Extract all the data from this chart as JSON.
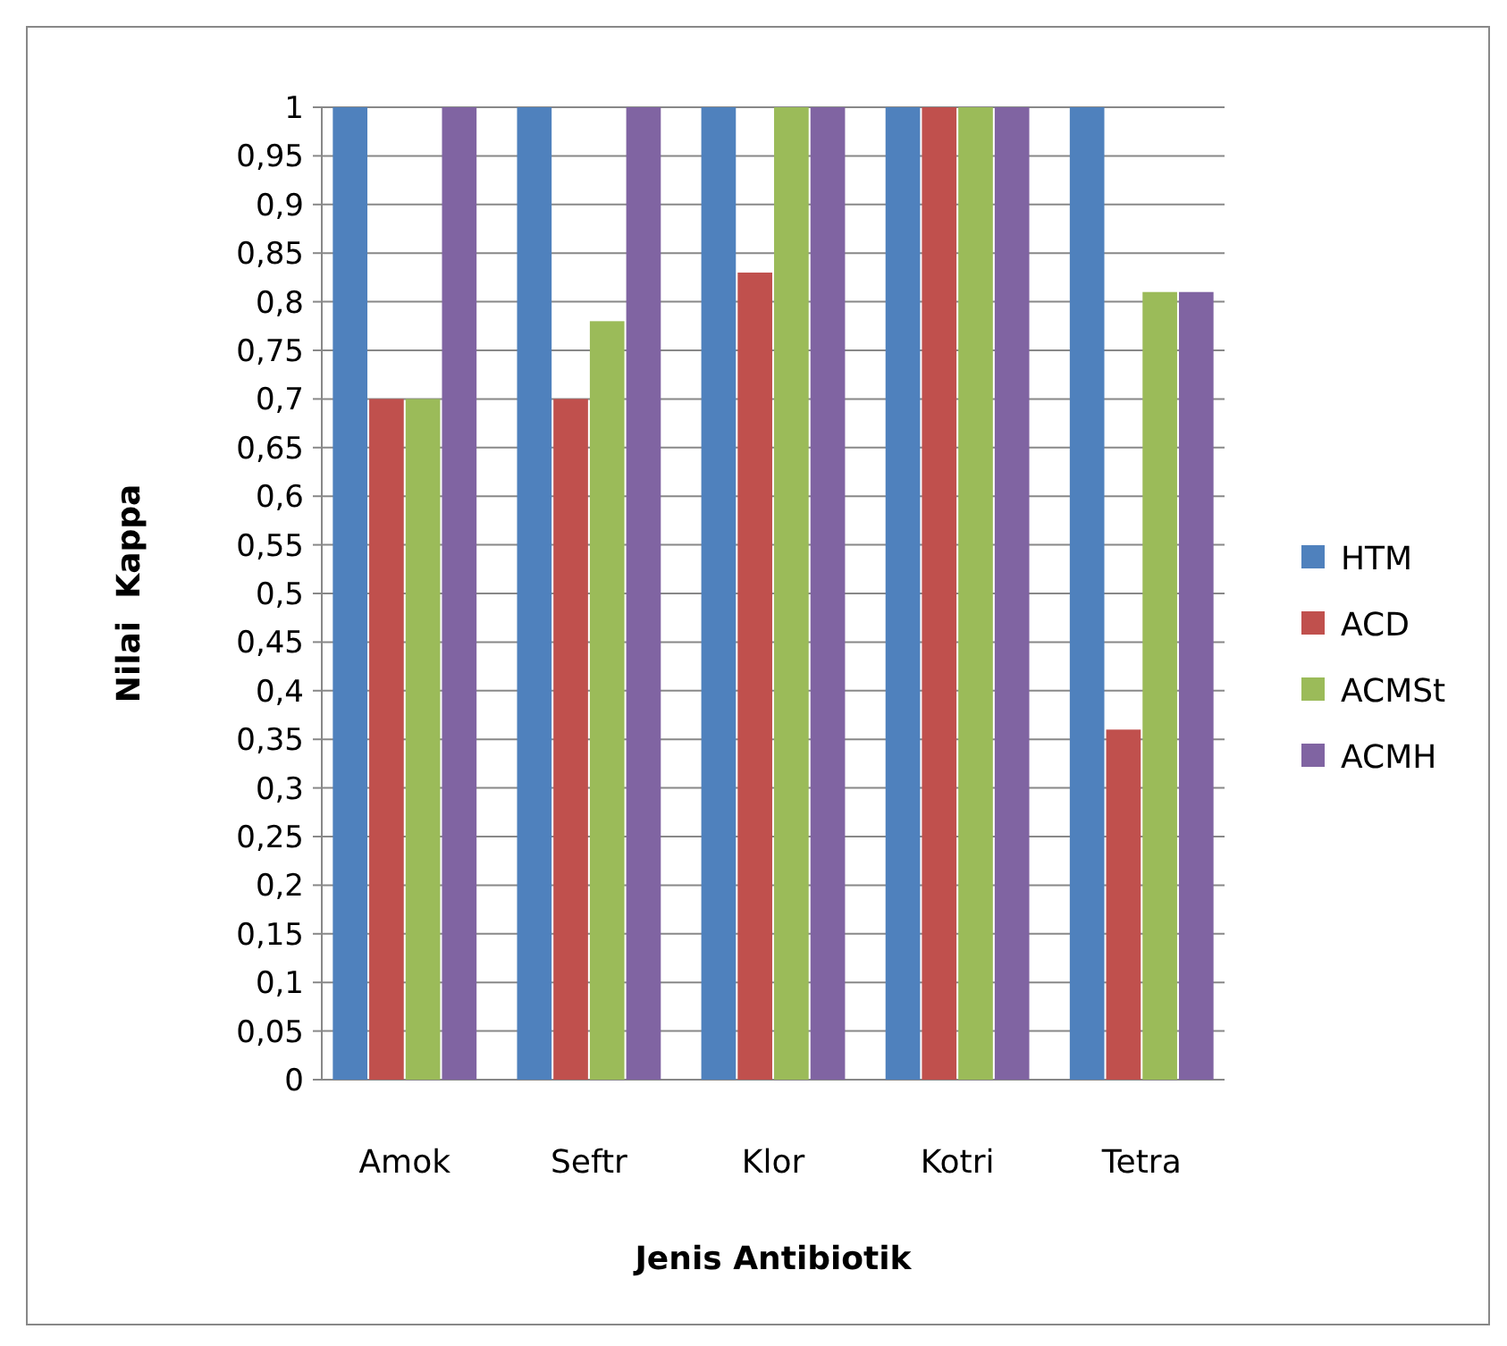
{
  "chart_data": {
    "type": "bar",
    "xlabel": "Jenis Antibiotik",
    "ylabel": "Nilai  Kappa",
    "categories": [
      "Amok",
      "Seftr",
      "Klor",
      "Kotri",
      "Tetra"
    ],
    "series": [
      {
        "name": "HTM",
        "color": "#4f81bd",
        "values": [
          1,
          1,
          1,
          1,
          1
        ]
      },
      {
        "name": "ACD",
        "color": "#c0504d",
        "values": [
          0.7,
          0.7,
          0.83,
          1,
          0.36
        ]
      },
      {
        "name": "ACMSt",
        "color": "#9bbb59",
        "values": [
          0.7,
          0.78,
          1,
          1,
          0.81
        ]
      },
      {
        "name": "ACMH",
        "color": "#8064a2",
        "values": [
          1,
          1,
          1,
          1,
          0.81
        ]
      }
    ],
    "ylim": [
      0,
      1
    ],
    "yticks": [
      0,
      {
        "value": 0.05,
        "label": "0,05"
      },
      {
        "value": 0.1,
        "label": "0,1"
      },
      {
        "value": 0.15,
        "label": "0,15"
      },
      {
        "value": 0.2,
        "label": "0,2"
      },
      {
        "value": 0.25,
        "label": "0,25"
      },
      {
        "value": 0.3,
        "label": "0,3"
      },
      {
        "value": 0.35,
        "label": "0,35"
      },
      {
        "value": 0.4,
        "label": "0,4"
      },
      {
        "value": 0.45,
        "label": "0,45"
      },
      {
        "value": 0.5,
        "label": "0,5"
      },
      {
        "value": 0.55,
        "label": "0,55"
      },
      {
        "value": 0.6,
        "label": "0,6"
      },
      {
        "value": 0.65,
        "label": "0,65"
      },
      {
        "value": 0.7,
        "label": "0,7"
      },
      {
        "value": 0.75,
        "label": "0,75"
      },
      {
        "value": 0.8,
        "label": "0,8"
      },
      {
        "value": 0.85,
        "label": "0,85"
      },
      {
        "value": 0.9,
        "label": "0,9"
      },
      {
        "value": 0.95,
        "label": "0,95"
      },
      1
    ],
    "grid": "y",
    "legend": "right"
  }
}
